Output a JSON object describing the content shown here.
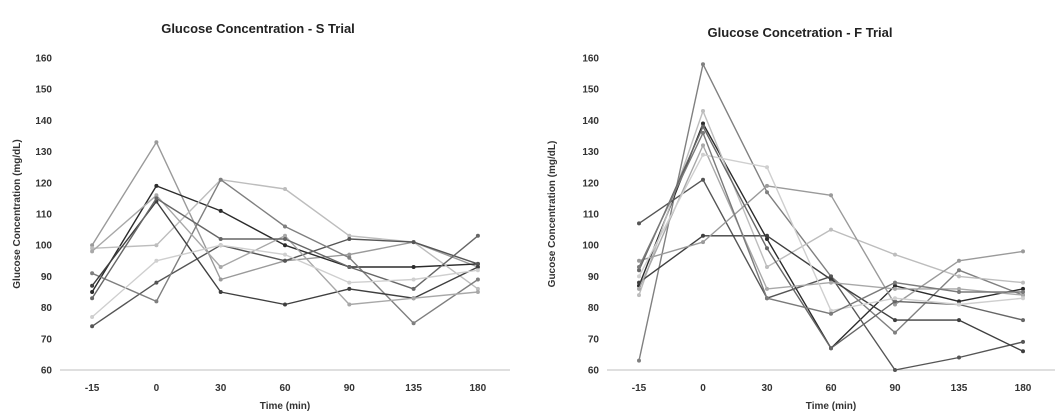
{
  "chart_data": [
    {
      "type": "line",
      "title": "Glucose Concentration - S Trial",
      "xlabel": "Time (min)",
      "ylabel": "Glucose Concentration (mg/dL)",
      "ylim": [
        60,
        160
      ],
      "yticks": [
        "60",
        "70",
        "80",
        "90",
        "100",
        "110",
        "120",
        "130",
        "140",
        "150",
        "160"
      ],
      "categories": [
        "-15",
        "0",
        "30",
        "60",
        "90",
        "135",
        "180"
      ],
      "grid": false,
      "legend": "none",
      "series": [
        {
          "color": "#9a9a9a",
          "values": [
            100,
            133,
            89,
            95,
            97,
            101,
            93
          ]
        },
        {
          "color": "#2b2b2b",
          "values": [
            85,
            119,
            111,
            100,
            93,
            93,
            94
          ]
        },
        {
          "color": "#bdbdbd",
          "values": [
            99,
            100,
            121,
            118,
            103,
            101,
            86
          ]
        },
        {
          "color": "#555555",
          "values": [
            74,
            88,
            100,
            95,
            102,
            101,
            94
          ]
        },
        {
          "color": "#7f7f7f",
          "values": [
            91,
            82,
            121,
            106,
            96,
            75,
            89
          ]
        },
        {
          "color": "#3f3f3f",
          "values": [
            87,
            114,
            85,
            81,
            86,
            83,
            93
          ]
        },
        {
          "color": "#a8a8a8",
          "values": [
            98,
            116,
            93,
            103,
            81,
            83,
            85
          ]
        },
        {
          "color": "#666666",
          "values": [
            83,
            115,
            102,
            102,
            93,
            86,
            103
          ]
        },
        {
          "color": "#cfcfcf",
          "values": [
            77,
            95,
            100,
            97,
            88,
            89,
            92
          ]
        }
      ]
    },
    {
      "type": "line",
      "title": "Glucose Concetration - F Trial",
      "xlabel": "Time (min)",
      "ylabel": "Gucose Concentration (mg/dL)",
      "ylim": [
        60,
        160
      ],
      "yticks": [
        "60",
        "70",
        "80",
        "90",
        "100",
        "110",
        "120",
        "130",
        "140",
        "150",
        "160"
      ],
      "categories": [
        "-15",
        "0",
        "30",
        "60",
        "90",
        "135",
        "180"
      ],
      "grid": false,
      "legend": "none",
      "series": [
        {
          "color": "#808080",
          "values": [
            63,
            158,
            117,
            90,
            72,
            92,
            84
          ]
        },
        {
          "color": "#2b2b2b",
          "values": [
            87,
            139,
            102,
            67,
            87,
            82,
            86
          ]
        },
        {
          "color": "#bdbdbd",
          "values": [
            84,
            143,
            93,
            105,
            97,
            90,
            88
          ]
        },
        {
          "color": "#555555",
          "values": [
            107,
            121,
            83,
            90,
            60,
            64,
            69
          ]
        },
        {
          "color": "#3f3f3f",
          "values": [
            88,
            103,
            103,
            89,
            76,
            76,
            66
          ]
        },
        {
          "color": "#9a9a9a",
          "values": [
            95,
            101,
            119,
            116,
            81,
            95,
            98
          ]
        },
        {
          "color": "#666666",
          "values": [
            92,
            138,
            99,
            67,
            82,
            81,
            76
          ]
        },
        {
          "color": "#a8a8a8",
          "values": [
            86,
            132,
            86,
            88,
            86,
            86,
            84
          ]
        },
        {
          "color": "#cfcfcf",
          "values": [
            90,
            129,
            125,
            79,
            83,
            81,
            83
          ]
        },
        {
          "color": "#7a7a7a",
          "values": [
            93,
            136,
            83,
            78,
            88,
            85,
            85
          ]
        }
      ]
    }
  ]
}
